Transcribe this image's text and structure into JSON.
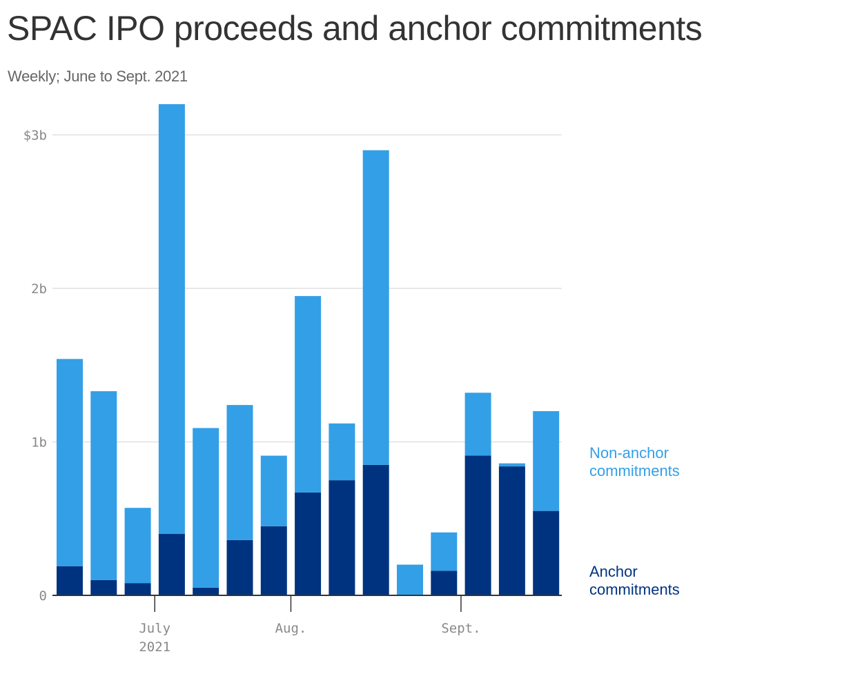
{
  "title": "SPAC IPO proceeds and anchor commitments",
  "subtitle": "Weekly; June to Sept. 2021",
  "colors": {
    "anchor": "#00337f",
    "non_anchor": "#339fe7",
    "grid": "#e0e0e0",
    "axis": "#333333",
    "tick_text": "#888888"
  },
  "chart_data": {
    "type": "bar",
    "stacked": true,
    "ylim": [
      0,
      3.2
    ],
    "y_ticks": [
      {
        "value": 0,
        "label": "0"
      },
      {
        "value": 1,
        "label": "1b"
      },
      {
        "value": 2,
        "label": "2b"
      },
      {
        "value": 3,
        "label": "$3b"
      }
    ],
    "x_ticks": [
      {
        "after_bar": 2,
        "lines": [
          "July",
          "2021"
        ]
      },
      {
        "after_bar": 6,
        "lines": [
          "Aug."
        ]
      },
      {
        "after_bar": 11,
        "lines": [
          "Sept."
        ]
      }
    ],
    "series": [
      {
        "name": "Anchor commitments",
        "legend_lines": [
          "Anchor",
          "commitments"
        ],
        "color": "#00337f",
        "values": [
          0.19,
          0.1,
          0.08,
          0.4,
          0.05,
          0.36,
          0.45,
          0.67,
          0.75,
          0.85,
          0.0,
          0.16,
          0.91,
          0.84,
          0.55
        ]
      },
      {
        "name": "Non-anchor commitments",
        "legend_lines": [
          "Non-anchor",
          "commitments"
        ],
        "color": "#339fe7",
        "values": [
          1.35,
          1.23,
          0.49,
          2.8,
          1.04,
          0.88,
          0.46,
          1.28,
          0.37,
          2.05,
          0.2,
          0.25,
          0.41,
          0.02,
          0.65
        ]
      }
    ]
  }
}
